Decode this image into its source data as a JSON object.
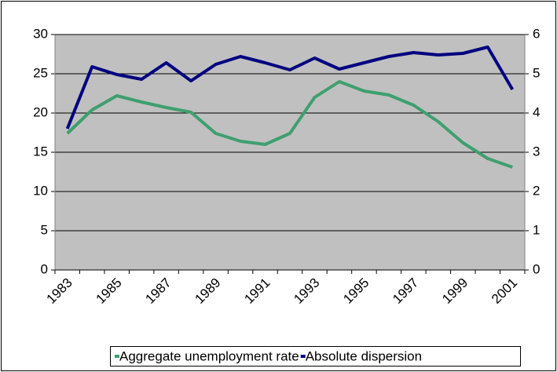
{
  "chart_data": {
    "type": "line",
    "categories": [
      "1983",
      null,
      "1985",
      null,
      "1987",
      null,
      "1989",
      null,
      "1991",
      null,
      "1993",
      null,
      "1995",
      null,
      "1997",
      null,
      "1999",
      null,
      "2001"
    ],
    "series": [
      {
        "name": "Aggregate unemployment rate",
        "color": "#3f9f6f",
        "values": [
          17.4,
          20.4,
          22.2,
          21.4,
          20.7,
          20.1,
          17.4,
          16.4,
          16.0,
          17.4,
          22.0,
          24.0,
          22.8,
          22.3,
          21.0,
          18.9,
          16.2,
          14.2,
          13.1
        ]
      },
      {
        "name": "Absolute dispersion",
        "color": "#000080",
        "axis": "y2",
        "values": [
          3.6,
          5.18,
          4.98,
          4.86,
          5.28,
          4.82,
          5.24,
          5.44,
          5.28,
          5.1,
          5.4,
          5.12,
          5.28,
          5.44,
          5.54,
          5.48,
          5.52,
          5.68,
          4.6
        ]
      }
    ],
    "ylim": [
      0,
      30
    ],
    "yticks": [
      0,
      5,
      10,
      15,
      20,
      25,
      30
    ],
    "y2lim": [
      0,
      6
    ],
    "y2ticks": [
      0,
      1,
      2,
      3,
      4,
      5,
      6
    ],
    "grid": true,
    "legend": "bottom"
  }
}
